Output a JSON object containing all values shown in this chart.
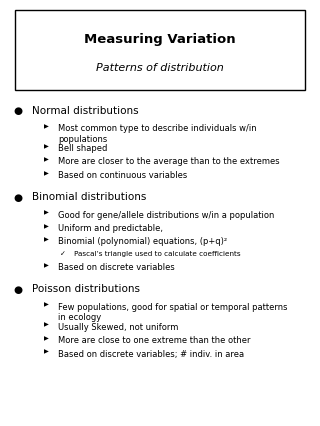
{
  "title": "Measuring Variation",
  "subtitle": "Patterns of distribution",
  "bg_color": "#ffffff",
  "border_color": "#000000",
  "text_color": "#000000",
  "title_fontsize": 9.5,
  "subtitle_fontsize": 8.0,
  "header_fontsize": 7.5,
  "bullet_fontsize": 6.0,
  "sub_fontsize": 5.2,
  "sections": [
    {
      "header": "Normal distributions",
      "items": [
        {
          "type": "bullet",
          "text": "Most common type to describe individuals w/in\npopulations"
        },
        {
          "type": "bullet",
          "text": "Bell shaped"
        },
        {
          "type": "bullet",
          "text": "More are closer to the average than to the extremes"
        },
        {
          "type": "bullet",
          "text": "Based on continuous variables"
        }
      ]
    },
    {
      "header": "Binomial distributions",
      "items": [
        {
          "type": "bullet",
          "text": "Good for gene/allele distributions w/in a population"
        },
        {
          "type": "bullet",
          "text": "Uniform and predictable,"
        },
        {
          "type": "bullet",
          "text": "Binomial (polynomial) equations, (p+q)²"
        },
        {
          "type": "sub",
          "text": "Pascal’s triangle used to calculate coefficients"
        },
        {
          "type": "bullet",
          "text": "Based on discrete variables"
        }
      ]
    },
    {
      "header": "Poisson distributions",
      "items": [
        {
          "type": "bullet",
          "text": "Few populations, good for spatial or temporal patterns\nin ecology"
        },
        {
          "type": "bullet",
          "text": "Usually Skewed, not uniform"
        },
        {
          "type": "bullet",
          "text": "More are close to one extreme than the other"
        },
        {
          "type": "bullet",
          "text": "Based on discrete variables; # indiv. in area"
        }
      ]
    }
  ]
}
